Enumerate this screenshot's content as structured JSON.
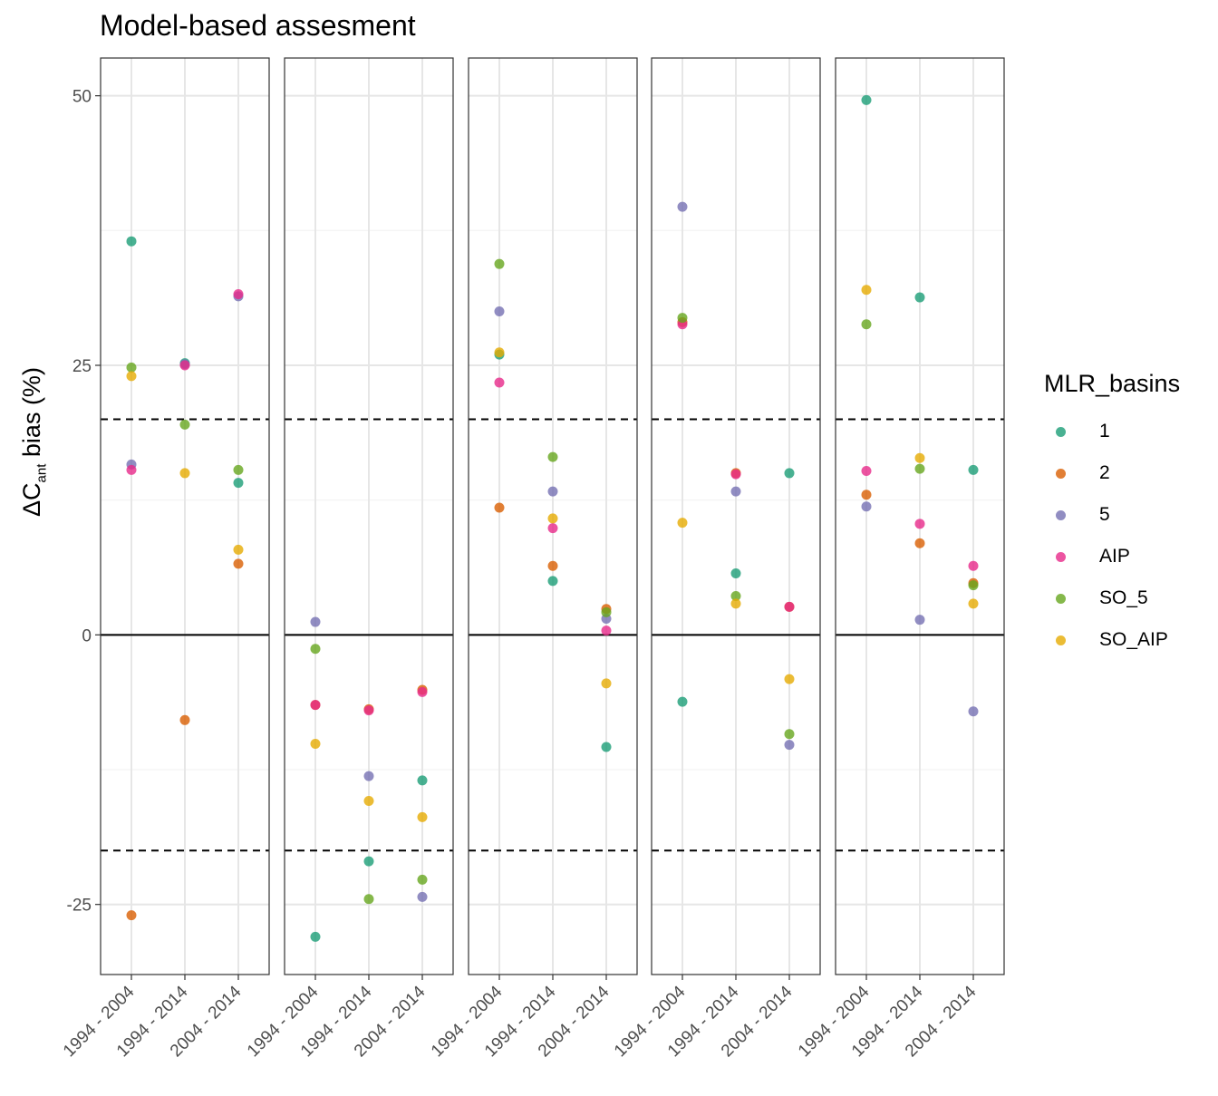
{
  "title": "Model-based assesment",
  "ylabel": {
    "main": "ΔC",
    "sub": "ant",
    "rest": " bias (%)"
  },
  "legend": {
    "title": "MLR_basins",
    "items": [
      {
        "label": "1",
        "color": "#1b9e77"
      },
      {
        "label": "2",
        "color": "#d95f02"
      },
      {
        "label": "5",
        "color": "#7570b3"
      },
      {
        "label": "AIP",
        "color": "#e7298a"
      },
      {
        "label": "SO_5",
        "color": "#66a61e"
      },
      {
        "label": "SO_AIP",
        "color": "#e6ab02"
      }
    ]
  },
  "chart_data": {
    "type": "scatter",
    "title": "Model-based assesment",
    "ylabel": "ΔCant bias (%)",
    "ylim": [
      -31.5,
      53.5
    ],
    "yticks": [
      -25,
      0,
      25,
      50
    ],
    "categories": [
      "1994 - 2004",
      "1994 - 2014",
      "2004 - 2014"
    ],
    "reference_lines": {
      "solid": [
        0
      ],
      "dashed": [
        -20,
        20
      ]
    },
    "grid": true,
    "legend_position": "right",
    "panels": [
      {
        "series": [
          {
            "name": "1",
            "values": [
              36.5,
              25.2,
              14.1
            ]
          },
          {
            "name": "2",
            "values": [
              -26,
              -7.9,
              6.6
            ]
          },
          {
            "name": "5",
            "values": [
              15.8,
              25.1,
              31.4
            ]
          },
          {
            "name": "AIP",
            "values": [
              15.3,
              25.0,
              31.6
            ]
          },
          {
            "name": "SO_5",
            "values": [
              24.8,
              19.5,
              15.3
            ]
          },
          {
            "name": "SO_AIP",
            "values": [
              24.0,
              15.0,
              7.9
            ]
          }
        ]
      },
      {
        "series": [
          {
            "name": "1",
            "values": [
              -28,
              -21,
              -13.5
            ]
          },
          {
            "name": "2",
            "values": [
              -6.5,
              -6.9,
              -5.1
            ]
          },
          {
            "name": "5",
            "values": [
              1.2,
              -13.1,
              -24.3
            ]
          },
          {
            "name": "AIP",
            "values": [
              -6.5,
              -7.0,
              -5.3
            ]
          },
          {
            "name": "SO_5",
            "values": [
              -1.3,
              -24.5,
              -22.7
            ]
          },
          {
            "name": "SO_AIP",
            "values": [
              -10.1,
              -15.4,
              -16.9
            ]
          }
        ]
      },
      {
        "series": [
          {
            "name": "1",
            "values": [
              26.0,
              5.0,
              -10.4
            ]
          },
          {
            "name": "2",
            "values": [
              11.8,
              6.4,
              2.4
            ]
          },
          {
            "name": "5",
            "values": [
              30.0,
              13.3,
              1.5
            ]
          },
          {
            "name": "AIP",
            "values": [
              23.4,
              9.9,
              0.4
            ]
          },
          {
            "name": "SO_5",
            "values": [
              34.4,
              16.5,
              2.1
            ]
          },
          {
            "name": "SO_AIP",
            "values": [
              26.2,
              10.8,
              -4.5
            ]
          }
        ]
      },
      {
        "series": [
          {
            "name": "1",
            "values": [
              -6.2,
              5.7,
              15.0
            ]
          },
          {
            "name": "2",
            "values": [
              29.0,
              15.0,
              2.6
            ]
          },
          {
            "name": "5",
            "values": [
              39.7,
              13.3,
              -10.2
            ]
          },
          {
            "name": "AIP",
            "values": [
              28.8,
              14.9,
              2.6
            ]
          },
          {
            "name": "SO_5",
            "values": [
              29.4,
              3.6,
              -9.2
            ]
          },
          {
            "name": "SO_AIP",
            "values": [
              10.4,
              2.9,
              -4.1
            ]
          }
        ]
      },
      {
        "series": [
          {
            "name": "1",
            "values": [
              49.6,
              31.3,
              15.3
            ]
          },
          {
            "name": "2",
            "values": [
              13.0,
              8.5,
              4.8
            ]
          },
          {
            "name": "5",
            "values": [
              11.9,
              1.4,
              -7.1
            ]
          },
          {
            "name": "AIP",
            "values": [
              15.2,
              10.3,
              6.4
            ]
          },
          {
            "name": "SO_5",
            "values": [
              28.8,
              15.4,
              4.6
            ]
          },
          {
            "name": "SO_AIP",
            "values": [
              32.0,
              16.4,
              2.9
            ]
          }
        ]
      }
    ]
  }
}
